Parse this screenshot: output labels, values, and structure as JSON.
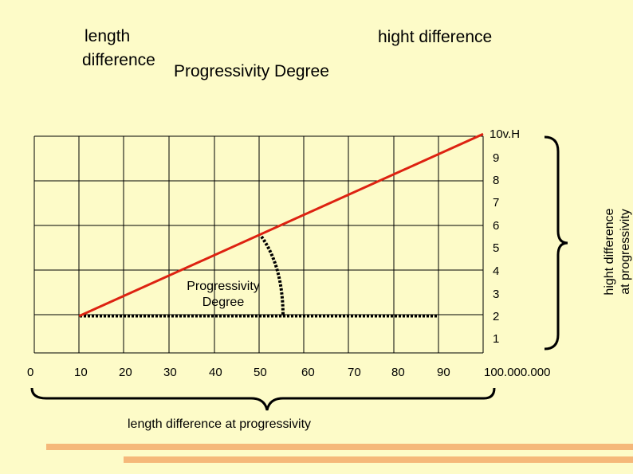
{
  "header": {
    "length_label": "length difference",
    "length_label_line1": "length",
    "length_label_line2": "difference",
    "height_label": "hight difference",
    "title": "Progressivity Degree"
  },
  "grid": {
    "x_ticks": [
      "0",
      "10",
      "20",
      "30",
      "40",
      "50",
      "60",
      "70",
      "80",
      "90",
      "100.000.000"
    ],
    "y_ticks": [
      "1",
      "2",
      "3",
      "4",
      "5",
      "6",
      "7",
      "8",
      "9",
      "10v.H"
    ]
  },
  "annotations": {
    "angle_label_line1": "Progressivity",
    "angle_label_line2": "Degree",
    "bottom_brace_label": "length difference at progressivity",
    "right_brace_label_line1": "hight difference",
    "right_brace_label_line2": "at progressivity"
  },
  "line": {
    "x_from": 10,
    "x_to": 100,
    "y_from": 2,
    "y_to": 10
  },
  "colors": {
    "background": "#fdfbc8",
    "progress_line": "#dd2211",
    "grid": "#000000",
    "decor_bar": "#f5b87a"
  }
}
